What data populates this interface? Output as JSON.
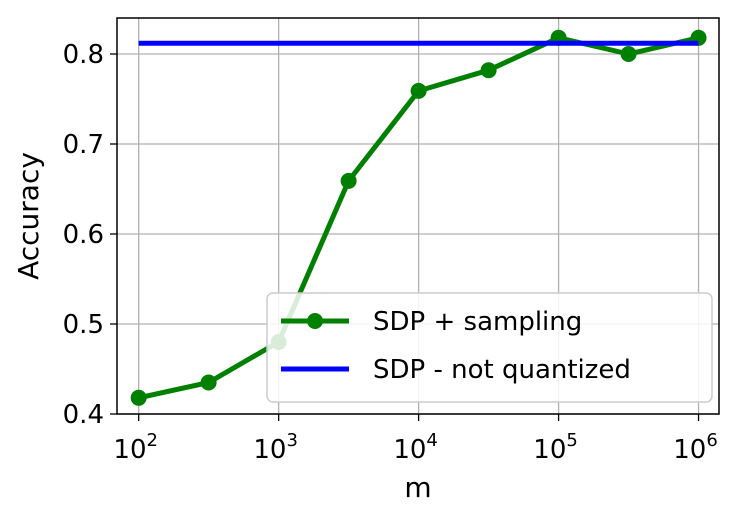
{
  "chart_data": {
    "type": "line",
    "title": "",
    "xlabel": "m",
    "ylabel": "Accuracy",
    "x_scale": "log",
    "xlim": [
      70,
      1400000
    ],
    "ylim": [
      0.4,
      0.84
    ],
    "x_ticks": [
      {
        "value": 100,
        "base": "10",
        "exp": "2"
      },
      {
        "value": 1000,
        "base": "10",
        "exp": "3"
      },
      {
        "value": 10000,
        "base": "10",
        "exp": "4"
      },
      {
        "value": 100000,
        "base": "10",
        "exp": "5"
      },
      {
        "value": 1000000,
        "base": "10",
        "exp": "6"
      }
    ],
    "y_ticks": [
      {
        "value": 0.4,
        "label": "0.4"
      },
      {
        "value": 0.5,
        "label": "0.5"
      },
      {
        "value": 0.6,
        "label": "0.6"
      },
      {
        "value": 0.7,
        "label": "0.7"
      },
      {
        "value": 0.8,
        "label": "0.8"
      }
    ],
    "grid": true,
    "legend_position": "lower-right",
    "series": [
      {
        "name": "SDP + sampling",
        "color": "#008000",
        "marker": "circle",
        "x": [
          100,
          316,
          1000,
          3162,
          10000,
          31623,
          100000,
          316228,
          1000000
        ],
        "y": [
          0.418,
          0.435,
          0.48,
          0.659,
          0.759,
          0.782,
          0.818,
          0.8,
          0.818
        ]
      },
      {
        "name": "SDP - not quantized",
        "color": "#0000ff",
        "marker": "none",
        "x": [
          100,
          1000000
        ],
        "y": [
          0.812,
          0.812
        ]
      }
    ]
  }
}
